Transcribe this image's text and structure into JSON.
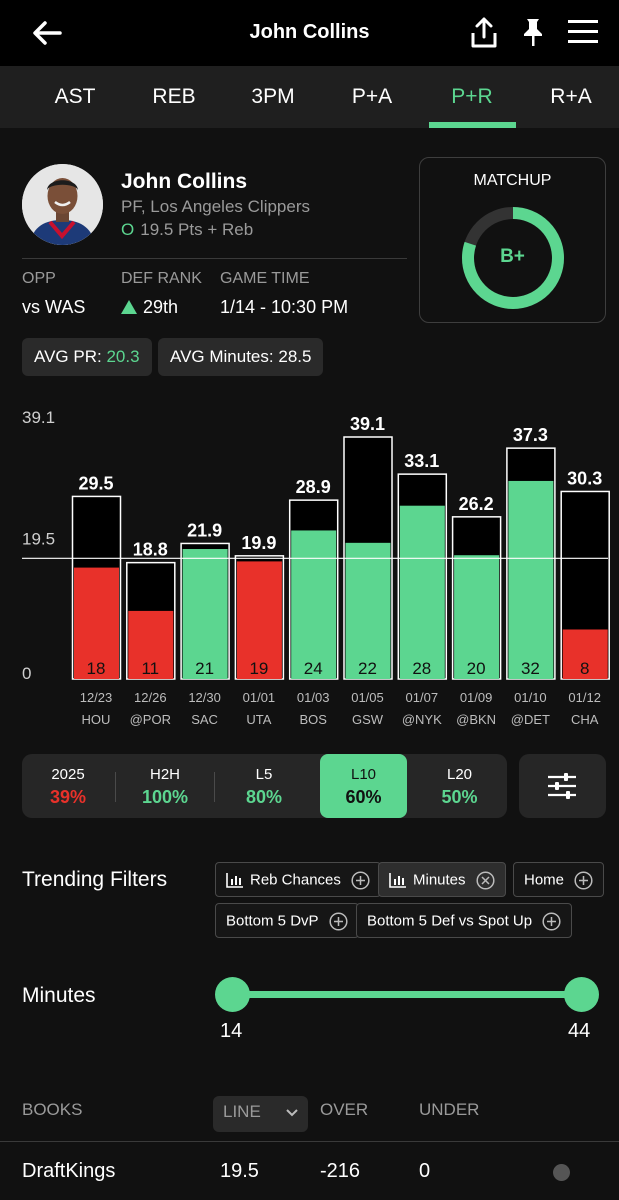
{
  "header": {
    "title": "John Collins",
    "back_icon": "back-arrow-icon",
    "share_icon": "share-icon",
    "pin_icon": "pin-icon",
    "menu_icon": "hamburger-menu-icon"
  },
  "tabs": [
    {
      "label": "AST"
    },
    {
      "label": "REB"
    },
    {
      "label": "3PM"
    },
    {
      "label": "P+A"
    },
    {
      "label": "P+R",
      "active": true
    },
    {
      "label": "R+A"
    }
  ],
  "player": {
    "name": "John Collins",
    "team": "PF, Los Angeles Clippers",
    "line_prefix": "O",
    "line": "19.5 Pts + Reb"
  },
  "meta": {
    "opp_label": "OPP",
    "opp_value": "vs WAS",
    "rank_label": "DEF RANK",
    "rank_value": "29th",
    "time_label": "GAME TIME",
    "time_value": "1/14 - 10:30 PM"
  },
  "stats": {
    "avg_pr_label": "AVG PR:",
    "avg_pr_value": "20.3",
    "avg_min_label": "AVG Minutes:",
    "avg_min_value": "28.5"
  },
  "matchup": {
    "label": "MATCHUP",
    "grade": "B+",
    "fill": 0.8
  },
  "chart_data": {
    "type": "bar",
    "y_ticks": [
      "39.1",
      "19.5",
      "0"
    ],
    "ylim": [
      0,
      39.1
    ],
    "line_value": 19.5,
    "bars": [
      {
        "date": "12/23",
        "opp": "HOU",
        "total": "29.5",
        "value": 18,
        "result": "under"
      },
      {
        "date": "12/26",
        "opp": "@POR",
        "total": "18.8",
        "value": 11,
        "result": "under"
      },
      {
        "date": "12/30",
        "opp": "SAC",
        "total": "21.9",
        "value": 21,
        "result": "over"
      },
      {
        "date": "01/01",
        "opp": "UTA",
        "total": "19.9",
        "value": 19,
        "result": "under"
      },
      {
        "date": "01/03",
        "opp": "BOS",
        "total": "28.9",
        "value": 24,
        "result": "over"
      },
      {
        "date": "01/05",
        "opp": "GSW",
        "total": "39.1",
        "value": 22,
        "result": "over"
      },
      {
        "date": "01/07",
        "opp": "@NYK",
        "total": "33.1",
        "value": 28,
        "result": "over"
      },
      {
        "date": "01/09",
        "opp": "@BKN",
        "total": "26.2",
        "value": 20,
        "result": "over"
      },
      {
        "date": "01/10",
        "opp": "@DET",
        "total": "37.3",
        "value": 32,
        "result": "over"
      },
      {
        "date": "01/12",
        "opp": "CHA",
        "total": "30.3",
        "value": 8,
        "result": "under"
      }
    ],
    "colors": {
      "over": "#5cd690",
      "under": "#e8312a"
    }
  },
  "filters": [
    {
      "label": "2025",
      "value": "39%",
      "color": "#e8312a"
    },
    {
      "label": "H2H",
      "value": "100%",
      "color": "#5cd690"
    },
    {
      "label": "L5",
      "value": "80%",
      "color": "#5cd690"
    },
    {
      "label": "L10",
      "value": "60%",
      "color": "#111111",
      "active": true
    },
    {
      "label": "L20",
      "value": "50%",
      "color": "#5cd690"
    }
  ],
  "filter_settings_icon": "sliders-icon",
  "trending": {
    "title": "Trending Filters",
    "chips": [
      {
        "label": "Reb Chances",
        "icon": "bar-chart-icon",
        "action": "add"
      },
      {
        "label": "Minutes",
        "icon": "bar-chart-icon",
        "action": "remove",
        "selected": true
      },
      {
        "label": "Home",
        "action": "add"
      },
      {
        "label": "Bottom 5 DvP",
        "action": "add"
      },
      {
        "label": "Bottom 5 Def vs Spot Up",
        "action": "add"
      }
    ]
  },
  "minutes": {
    "title": "Minutes",
    "min": "14",
    "max": "44"
  },
  "books": {
    "col_books": "BOOKS",
    "col_line": "LINE",
    "col_over": "OVER",
    "col_under": "UNDER",
    "rows": [
      {
        "book": "DraftKings",
        "line": "19.5",
        "over": "-216",
        "under": "0"
      }
    ]
  }
}
